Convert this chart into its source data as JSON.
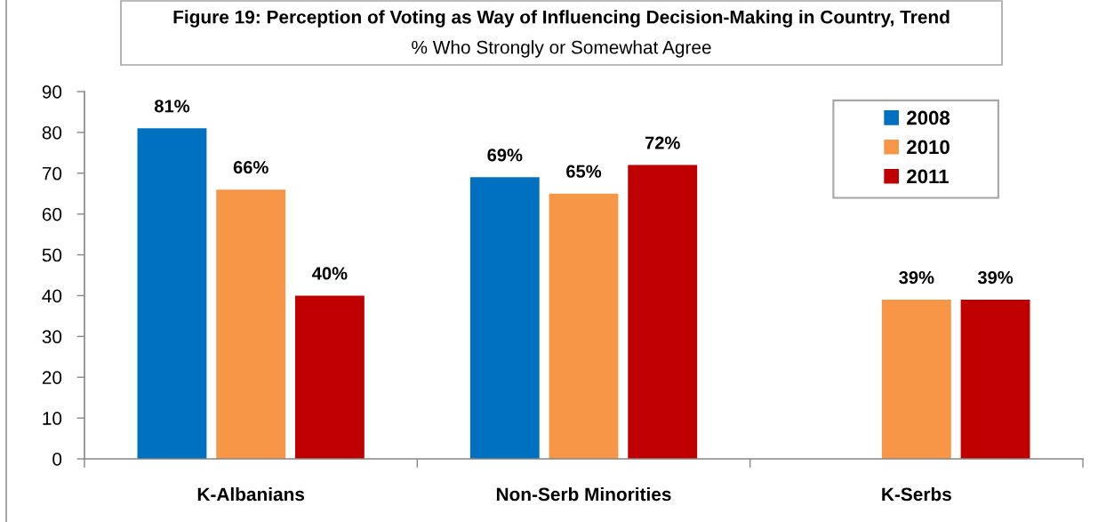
{
  "chart_data": {
    "type": "bar",
    "title": "Figure 19: Perception of Voting as Way of Influencing Decision-Making in Country, Trend",
    "subtitle": "% Who Strongly or Somewhat Agree",
    "categories": [
      "K-Albanians",
      "Non-Serb Minorities",
      "K-Serbs"
    ],
    "series": [
      {
        "name": "2008",
        "color": "#0070c0",
        "values": [
          81,
          69,
          null
        ],
        "value_labels": [
          "81%",
          "69%",
          null
        ]
      },
      {
        "name": "2010",
        "color": "#f79646",
        "values": [
          66,
          65,
          39
        ],
        "value_labels": [
          "66%",
          "65%",
          "39%"
        ]
      },
      {
        "name": "2011",
        "color": "#c00000",
        "values": [
          40,
          72,
          39
        ],
        "value_labels": [
          "40%",
          "72%",
          "39%"
        ]
      }
    ],
    "ylim": [
      0,
      90
    ],
    "yticks": [
      0,
      10,
      20,
      30,
      40,
      50,
      60,
      70,
      80,
      90
    ],
    "grid": false,
    "legend": "top right"
  }
}
